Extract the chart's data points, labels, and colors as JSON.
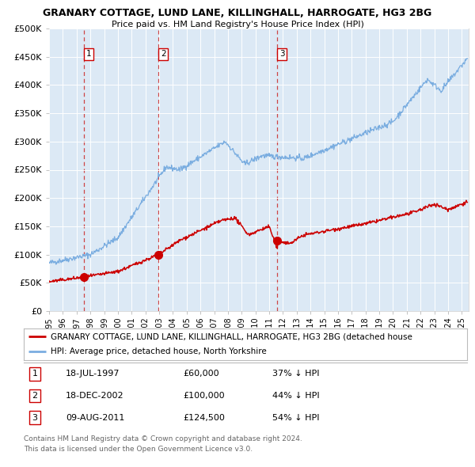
{
  "title": "GRANARY COTTAGE, LUND LANE, KILLINGHALL, HARROGATE, HG3 2BG",
  "subtitle": "Price paid vs. HM Land Registry's House Price Index (HPI)",
  "bg_color": "#dce9f5",
  "ylim": [
    0,
    500000
  ],
  "yticks": [
    0,
    50000,
    100000,
    150000,
    200000,
    250000,
    300000,
    350000,
    400000,
    450000,
    500000
  ],
  "xlim_start": 1995.0,
  "xlim_end": 2025.5,
  "sale_points": [
    {
      "date_num": 1997.54,
      "price": 60000,
      "label": "1",
      "date_str": "18-JUL-1997",
      "price_str": "£60,000",
      "pct": "37% ↓ HPI"
    },
    {
      "date_num": 2002.96,
      "price": 100000,
      "label": "2",
      "date_str": "18-DEC-2002",
      "price_str": "£100,000",
      "pct": "44% ↓ HPI"
    },
    {
      "date_num": 2011.6,
      "price": 124500,
      "label": "3",
      "date_str": "09-AUG-2011",
      "price_str": "£124,500",
      "pct": "54% ↓ HPI"
    }
  ],
  "legend_entry1": "GRANARY COTTAGE, LUND LANE, KILLINGHALL, HARROGATE, HG3 2BG (detached house",
  "legend_entry2": "HPI: Average price, detached house, North Yorkshire",
  "footer1": "Contains HM Land Registry data © Crown copyright and database right 2024.",
  "footer2": "This data is licensed under the Open Government Licence v3.0.",
  "red_line_color": "#cc0000",
  "blue_line_color": "#7aade0"
}
